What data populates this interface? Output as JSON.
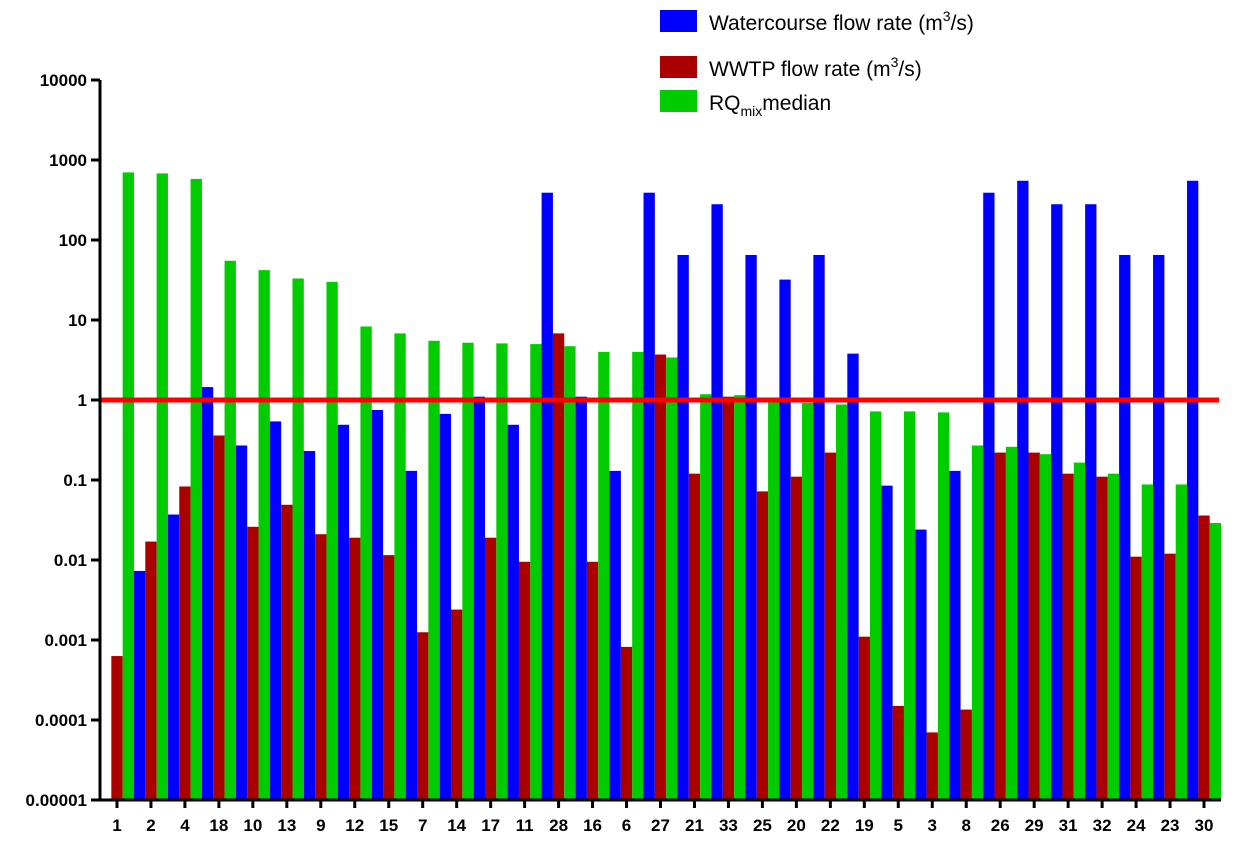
{
  "chart_data": {
    "type": "bar",
    "yscale": "log",
    "ylim": [
      1e-05,
      10000
    ],
    "y_tick_labels": [
      "0.00001",
      "0.0001",
      "0.001",
      "0.01",
      "0.1",
      "1",
      "10",
      "100",
      "1000",
      "10000"
    ],
    "categories": [
      "1",
      "2",
      "4",
      "18",
      "10",
      "13",
      "9",
      "12",
      "15",
      "7",
      "14",
      "17",
      "11",
      "28",
      "16",
      "6",
      "27",
      "21",
      "33",
      "25",
      "20",
      "22",
      "19",
      "5",
      "3",
      "8",
      "26",
      "29",
      "31",
      "32",
      "24",
      "23",
      "30"
    ],
    "series": [
      {
        "name_prefix": "Watercourse flow rate (m",
        "name_sup": "3",
        "name_suffix": "/s)",
        "color": "#0000ff",
        "values": [
          null,
          0.0073,
          0.037,
          1.45,
          0.27,
          0.54,
          0.23,
          0.49,
          0.75,
          0.13,
          0.67,
          1.1,
          0.49,
          390,
          1.1,
          0.13,
          390,
          65,
          280,
          65,
          32,
          65,
          3.8,
          0.085,
          0.024,
          0.13,
          390,
          550,
          280,
          280,
          65,
          65,
          550
        ]
      },
      {
        "name_prefix": "WWTP flow rate (m",
        "name_sup": "3",
        "name_suffix": "/s)",
        "color": "#aa0000",
        "values": [
          0.00063,
          0.017,
          0.083,
          0.36,
          0.026,
          0.049,
          0.021,
          0.019,
          0.0115,
          0.00125,
          0.0024,
          0.019,
          0.0095,
          6.8,
          0.0095,
          0.00082,
          3.7,
          0.12,
          1.1,
          0.072,
          0.11,
          0.22,
          0.0011,
          0.00015,
          7e-05,
          0.000135,
          0.22,
          0.22,
          0.12,
          0.11,
          0.011,
          0.012,
          0.036
        ]
      },
      {
        "name_prefix": "RQ",
        "name_sub": "mix",
        "name_suffix": "median",
        "color": "#00cc00",
        "values": [
          700,
          680,
          580,
          55,
          42,
          33,
          30,
          8.3,
          6.8,
          5.5,
          5.2,
          5.1,
          5.0,
          4.7,
          4.0,
          4.0,
          3.4,
          1.18,
          1.15,
          1.05,
          0.92,
          0.88,
          0.72,
          0.72,
          0.7,
          0.27,
          0.26,
          0.21,
          0.165,
          0.12,
          0.088,
          0.088,
          0.029
        ]
      }
    ],
    "reference_line": {
      "y": 1,
      "color": "#ff0000"
    },
    "legend_position": "top-right",
    "grid": false
  }
}
